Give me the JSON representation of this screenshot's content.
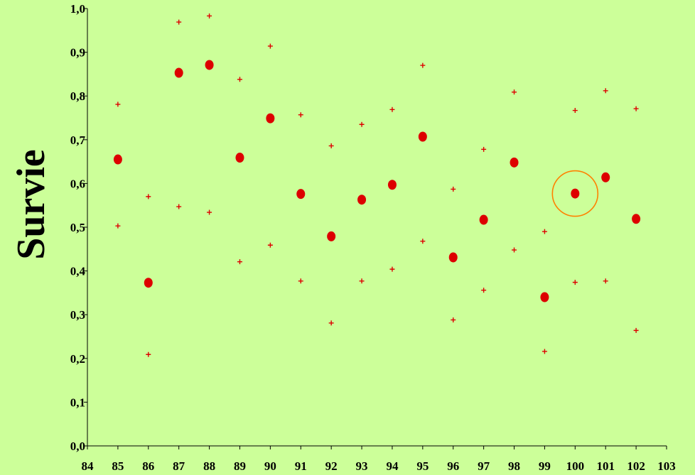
{
  "chart_data": {
    "type": "scatter",
    "title": "",
    "xlabel": "",
    "ylabel": "Survie",
    "xlim": [
      84,
      103
    ],
    "ylim": [
      0.0,
      1.0
    ],
    "x_ticks": [
      "84",
      "85",
      "86",
      "87",
      "88",
      "89",
      "90",
      "91",
      "92",
      "93",
      "94",
      "95",
      "96",
      "97",
      "98",
      "99",
      "100",
      "101",
      "102",
      "103"
    ],
    "y_ticks": [
      "0,0",
      "0,1",
      "0,2",
      "0,3",
      "0,4",
      "0,5",
      "0,6",
      "0,7",
      "0,8",
      "0,9",
      "1,0"
    ],
    "grid": false,
    "legend": "none",
    "colors": {
      "points": "#dd0000",
      "highlight": "#ff8000",
      "axis": "#000000",
      "background": "#ccff99"
    },
    "series": [
      {
        "marker": "dot",
        "x": [
          85,
          86,
          87,
          88,
          89,
          90,
          91,
          92,
          93,
          94,
          95,
          96,
          97,
          98,
          99,
          100,
          101,
          102
        ],
        "y": [
          0.655,
          0.373,
          0.853,
          0.871,
          0.659,
          0.749,
          0.576,
          0.479,
          0.563,
          0.597,
          0.707,
          0.431,
          0.517,
          0.648,
          0.34,
          0.577,
          0.614,
          0.519
        ]
      },
      {
        "marker": "cross",
        "x": [
          85,
          86,
          87,
          88,
          89,
          90,
          91,
          92,
          93,
          94,
          95,
          96,
          97,
          98,
          99,
          100,
          101,
          102
        ],
        "y": [
          0.781,
          0.57,
          0.969,
          0.983,
          0.838,
          0.914,
          0.757,
          0.686,
          0.735,
          0.769,
          0.87,
          0.587,
          0.678,
          0.809,
          0.49,
          0.767,
          0.812,
          0.771
        ]
      },
      {
        "marker": "cross",
        "x": [
          85,
          86,
          87,
          88,
          89,
          90,
          91,
          92,
          93,
          94,
          95,
          96,
          97,
          98,
          99,
          100,
          101,
          102
        ],
        "y": [
          0.503,
          0.209,
          0.547,
          0.534,
          0.421,
          0.459,
          0.377,
          0.281,
          0.377,
          0.404,
          0.468,
          0.288,
          0.356,
          0.448,
          0.216,
          0.374,
          0.377,
          0.264
        ]
      }
    ],
    "highlight": {
      "x": 100,
      "y": 0.577
    }
  }
}
